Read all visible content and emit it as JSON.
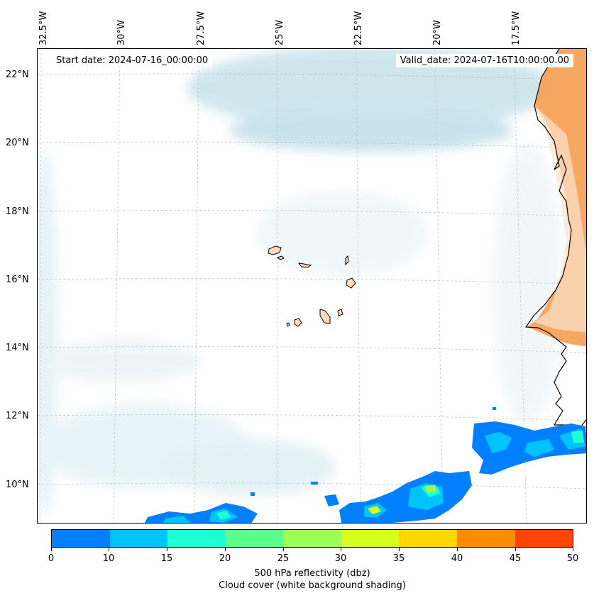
{
  "map": {
    "start_label": "Start date: 2024-07-16_00:00:00",
    "valid_label": "Valid_date: 2024-07-16T10:00:00.00",
    "lon_labels": [
      "32.5°W",
      "30°W",
      "27.5°W",
      "25°W",
      "22.5°W",
      "20°W",
      "17.5°W"
    ],
    "lat_labels": [
      "22°N",
      "20°N",
      "18°N",
      "16°N",
      "14°N",
      "12°N",
      "10°N"
    ],
    "land_color": "#f6a35a",
    "island_color": "#fcd9bc",
    "cloud_color": "#bfe0ea"
  },
  "colorbar": {
    "ticks": [
      "0",
      "10",
      "15",
      "20",
      "25",
      "30",
      "35",
      "40",
      "45",
      "50"
    ],
    "colors": [
      "#0080ff",
      "#00c4ff",
      "#1fffd4",
      "#5cff8c",
      "#9cff54",
      "#d4ff1f",
      "#ffd700",
      "#ff8c00",
      "#ff4500"
    ],
    "title_line1": "500 hPa reflectivity (dbz)",
    "title_line2": "Cloud cover (white background shading)"
  }
}
